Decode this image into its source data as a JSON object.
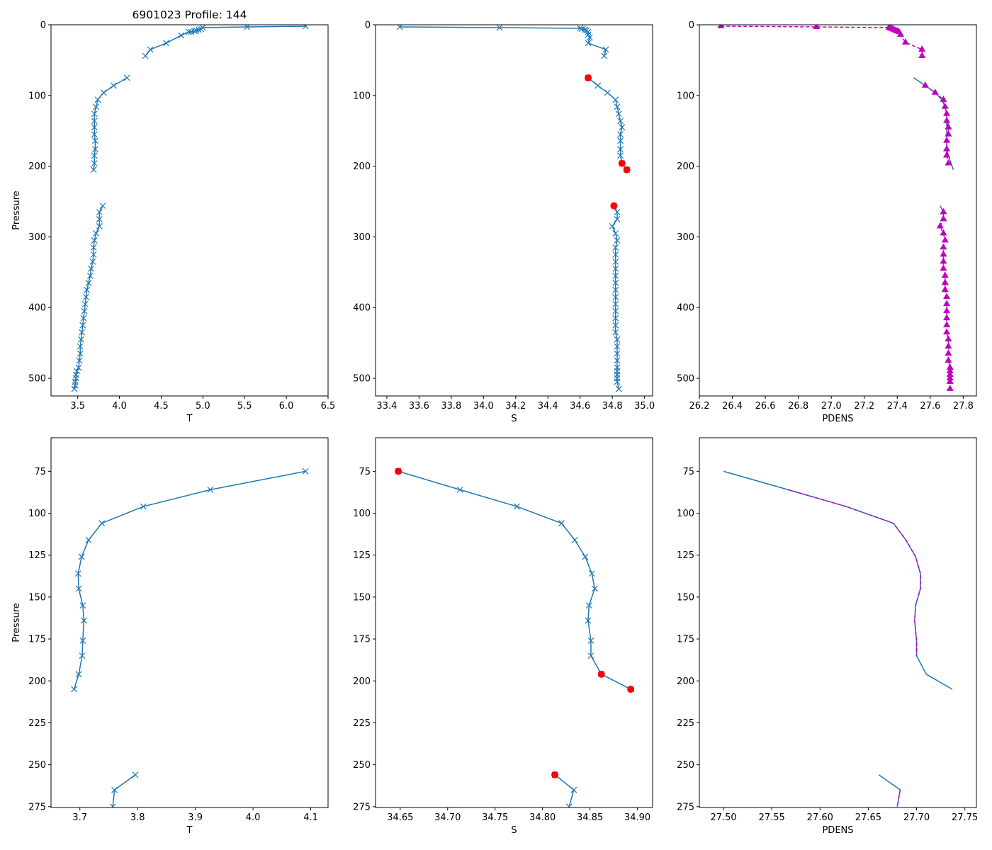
{
  "figure": {
    "colors": {
      "line": "#1f77b4",
      "flag": "#ff0000",
      "pdens": "#bf00bf",
      "axis": "#000000",
      "background": "#ffffff"
    }
  },
  "chart_data": [
    {
      "id": "top-t",
      "type": "line",
      "title": "6901023 Profile: 144",
      "xlabel": "T",
      "ylabel": "Pressure",
      "xlim": [
        3.18,
        6.5
      ],
      "ylim": [
        525,
        0
      ],
      "xticks": [
        3.5,
        4.0,
        4.5,
        5.0,
        5.5,
        6.0,
        6.5
      ],
      "xtick_labels": [
        "3.5",
        "4.0",
        "4.5",
        "5.0",
        "5.5",
        "6.0",
        "6.5"
      ],
      "yticks": [
        0,
        100,
        200,
        300,
        400,
        500
      ],
      "series": [
        {
          "name": "T",
          "marker": "x",
          "x": [
            6.23,
            5.53,
            5.0,
            4.98,
            4.95,
            4.92,
            4.9,
            4.86,
            4.83,
            4.74,
            4.56,
            4.37,
            4.31
          ],
          "y": [
            2,
            3,
            4,
            6,
            7,
            8,
            9,
            10,
            10,
            15,
            26,
            35,
            44
          ]
        },
        {
          "name": "T",
          "marker": "x",
          "x": [
            4.09,
            3.93,
            3.81,
            3.74,
            3.72,
            3.7,
            3.7,
            3.7,
            3.7,
            3.71,
            3.71,
            3.7,
            3.7,
            3.69
          ],
          "y": [
            75,
            86,
            96,
            106,
            116,
            126,
            136,
            145,
            155,
            164,
            176,
            185,
            196,
            205
          ]
        },
        {
          "name": "T",
          "marker": "x",
          "x": [
            3.8,
            3.76,
            3.76,
            3.76,
            3.72,
            3.7,
            3.69,
            3.69,
            3.68,
            3.66,
            3.65,
            3.63,
            3.61,
            3.6,
            3.59,
            3.58,
            3.57,
            3.56,
            3.55,
            3.54,
            3.53,
            3.53,
            3.52,
            3.51,
            3.49,
            3.48,
            3.48,
            3.47,
            3.47,
            3.46
          ],
          "y": [
            256,
            265,
            275,
            285,
            295,
            305,
            315,
            325,
            335,
            345,
            355,
            365,
            375,
            385,
            395,
            405,
            415,
            425,
            435,
            445,
            455,
            465,
            475,
            485,
            490,
            495,
            500,
            505,
            510,
            515
          ]
        }
      ]
    },
    {
      "id": "top-s",
      "type": "line",
      "title": "",
      "xlabel": "S",
      "ylabel": "",
      "xlim": [
        33.33,
        35.05
      ],
      "ylim": [
        525,
        0
      ],
      "xticks": [
        33.4,
        33.6,
        33.8,
        34.0,
        34.2,
        34.4,
        34.6,
        34.8,
        35.0
      ],
      "xtick_labels": [
        "33.4",
        "33.6",
        "33.8",
        "34.0",
        "34.2",
        "34.4",
        "34.6",
        "34.8",
        "35.0"
      ],
      "yticks": [
        0,
        100,
        200,
        300,
        400,
        500
      ],
      "series": [
        {
          "name": "S",
          "marker": "x",
          "x": [
            33.48,
            34.1,
            34.6,
            34.61,
            34.63,
            34.64,
            34.65,
            34.65,
            34.66,
            34.65,
            34.76,
            34.75
          ],
          "y": [
            3,
            4,
            5,
            6,
            7,
            8,
            10,
            14,
            18,
            26,
            35,
            44
          ]
        },
        {
          "name": "S",
          "marker": "x",
          "x": [
            34.65,
            34.71,
            34.77,
            34.82,
            34.83,
            34.84,
            34.85,
            34.86,
            34.85,
            34.85,
            34.85,
            34.85,
            34.86,
            34.89
          ],
          "y": [
            75,
            86,
            96,
            106,
            116,
            126,
            136,
            145,
            155,
            164,
            176,
            185,
            196,
            205
          ]
        },
        {
          "name": "S",
          "marker": "x",
          "x": [
            34.81,
            34.83,
            34.83,
            34.8,
            34.82,
            34.83,
            34.82,
            34.82,
            34.82,
            34.82,
            34.82,
            34.82,
            34.82,
            34.82,
            34.82,
            34.82,
            34.82,
            34.82,
            34.82,
            34.83,
            34.83,
            34.83,
            34.83,
            34.83,
            34.83,
            34.83,
            34.83,
            34.83,
            34.84
          ],
          "y": [
            256,
            265,
            275,
            285,
            295,
            305,
            315,
            325,
            335,
            345,
            355,
            365,
            375,
            385,
            395,
            405,
            415,
            425,
            435,
            445,
            455,
            465,
            475,
            485,
            490,
            495,
            500,
            505,
            515
          ]
        }
      ],
      "flagged": {
        "name": "flagged S",
        "marker": "o",
        "x": [
          34.65,
          34.86,
          34.89,
          34.81
        ],
        "y": [
          75,
          196,
          205,
          256
        ]
      }
    },
    {
      "id": "top-pdens",
      "type": "line",
      "title": "",
      "xlabel": "PDENS",
      "ylabel": "",
      "xlim": [
        26.2,
        27.88
      ],
      "ylim": [
        525,
        0
      ],
      "xticks": [
        26.2,
        26.4,
        26.6,
        26.8,
        27.0,
        27.2,
        27.4,
        27.6,
        27.8
      ],
      "xtick_labels": [
        "26.2",
        "26.4",
        "26.6",
        "26.8",
        "27.0",
        "27.2",
        "27.4",
        "27.6",
        "27.8"
      ],
      "yticks": [
        0,
        100,
        200,
        300,
        400,
        500
      ],
      "series": [
        {
          "name": "PDENS",
          "marker": "none",
          "x": [
            27.5,
            27.57,
            27.63,
            27.67,
            27.69,
            27.7,
            27.7,
            27.7,
            27.7,
            27.7,
            27.7,
            27.71,
            27.74
          ],
          "y": [
            75,
            86,
            96,
            106,
            116,
            126,
            136,
            145,
            155,
            164,
            176,
            185,
            205
          ]
        },
        {
          "name": "PDENS",
          "marker": "none",
          "x": [
            27.66,
            27.68,
            27.68
          ],
          "y": [
            256,
            265,
            275
          ]
        }
      ],
      "overlay": [
        {
          "name": "PDENS check",
          "marker": "^",
          "x": [
            26.33,
            26.91,
            27.35,
            27.36,
            27.37,
            27.38,
            27.39,
            27.4,
            27.41,
            27.42,
            27.45,
            27.55,
            27.55
          ],
          "y": [
            2,
            3,
            4,
            5,
            6,
            7,
            8,
            9,
            10,
            14,
            25,
            35,
            44
          ]
        },
        {
          "name": "PDENS check",
          "marker": "^",
          "x": [
            27.57,
            27.63,
            27.68,
            27.69,
            27.7,
            27.7,
            27.71,
            27.71,
            27.7,
            27.7,
            27.7,
            27.71
          ],
          "y": [
            86,
            96,
            106,
            116,
            126,
            136,
            145,
            155,
            164,
            176,
            185,
            196
          ]
        },
        {
          "name": "PDENS check",
          "marker": "^",
          "x": [
            27.68,
            27.68,
            27.66,
            27.68,
            27.69,
            27.68,
            27.68,
            27.68,
            27.68,
            27.69,
            27.69,
            27.69,
            27.7,
            27.7,
            27.7,
            27.7,
            27.7,
            27.7,
            27.71,
            27.71,
            27.71,
            27.71,
            27.72,
            27.72,
            27.72,
            27.72,
            27.72,
            27.72
          ],
          "y": [
            265,
            275,
            285,
            295,
            305,
            315,
            325,
            335,
            345,
            355,
            365,
            375,
            385,
            395,
            405,
            415,
            425,
            435,
            445,
            455,
            465,
            475,
            485,
            490,
            495,
            500,
            505,
            515
          ]
        }
      ]
    },
    {
      "id": "bottom-t",
      "type": "line",
      "title": "",
      "xlabel": "T",
      "ylabel": "Pressure",
      "xlim": [
        3.65,
        4.13
      ],
      "ylim": [
        275.5,
        55
      ],
      "xticks": [
        3.7,
        3.8,
        3.9,
        4.0,
        4.1
      ],
      "xtick_labels": [
        "3.7",
        "3.8",
        "3.9",
        "4.0",
        "4.1"
      ],
      "yticks": [
        75,
        100,
        125,
        150,
        175,
        200,
        225,
        250,
        275
      ],
      "series": [
        {
          "name": "T",
          "marker": "x",
          "x": [
            4.091,
            3.926,
            3.81,
            3.738,
            3.715,
            3.703,
            3.697,
            3.698,
            3.705,
            3.707,
            3.705,
            3.704,
            3.698,
            3.69
          ],
          "y": [
            75,
            86,
            96,
            106,
            116,
            126,
            136,
            145,
            155,
            164,
            176,
            185,
            196,
            205
          ]
        },
        {
          "name": "T",
          "marker": "x",
          "x": [
            3.796,
            3.76,
            3.757
          ],
          "y": [
            256,
            265,
            275
          ]
        }
      ]
    },
    {
      "id": "bottom-s",
      "type": "line",
      "title": "",
      "xlabel": "S",
      "ylabel": "",
      "xlim": [
        34.624,
        34.916
      ],
      "ylim": [
        275.5,
        55
      ],
      "xticks": [
        34.65,
        34.7,
        34.75,
        34.8,
        34.85,
        34.9
      ],
      "xtick_labels": [
        "34.65",
        "34.70",
        "34.75",
        "34.80",
        "34.85",
        "34.90"
      ],
      "yticks": [
        75,
        100,
        125,
        150,
        175,
        200,
        225,
        250,
        275
      ],
      "series": [
        {
          "name": "S",
          "marker": "x",
          "x": [
            34.648,
            34.713,
            34.773,
            34.82,
            34.834,
            34.845,
            34.852,
            34.855,
            34.849,
            34.848,
            34.851,
            34.851,
            34.862,
            34.893
          ],
          "y": [
            75,
            86,
            96,
            106,
            116,
            126,
            136,
            145,
            155,
            164,
            176,
            185,
            196,
            205
          ]
        },
        {
          "name": "S",
          "marker": "x",
          "x": [
            34.813,
            34.833,
            34.828
          ],
          "y": [
            256,
            265,
            275
          ]
        }
      ],
      "flagged": {
        "name": "flagged S",
        "marker": "o",
        "x": [
          34.648,
          34.862,
          34.893,
          34.813
        ],
        "y": [
          75,
          196,
          205,
          256
        ]
      }
    },
    {
      "id": "bottom-pdens",
      "type": "line",
      "title": "",
      "xlabel": "PDENS",
      "ylabel": "",
      "xlim": [
        27.475,
        27.762
      ],
      "ylim": [
        275.5,
        55
      ],
      "xticks": [
        27.5,
        27.55,
        27.6,
        27.65,
        27.7,
        27.75
      ],
      "xtick_labels": [
        "27.50",
        "27.55",
        "27.60",
        "27.65",
        "27.70",
        "27.75"
      ],
      "yticks": [
        75,
        100,
        125,
        150,
        175,
        200,
        225,
        250,
        275
      ],
      "series": [
        {
          "name": "PDENS",
          "marker": "none",
          "x": [
            27.5,
            27.567,
            27.627,
            27.676,
            27.689,
            27.699,
            27.704,
            27.704,
            27.699,
            27.698,
            27.7,
            27.7,
            27.71,
            27.737
          ],
          "y": [
            75,
            86,
            96,
            106,
            116,
            126,
            136,
            145,
            155,
            164,
            176,
            185,
            196,
            205
          ]
        },
        {
          "name": "PDENS",
          "marker": "none",
          "x": [
            27.661,
            27.683,
            27.68
          ],
          "y": [
            256,
            265,
            275
          ]
        }
      ],
      "overlay": [
        {
          "name": "PDENS check",
          "marker": "none",
          "x": [
            27.567,
            27.627,
            27.676,
            27.689,
            27.699,
            27.704,
            27.704,
            27.699,
            27.698,
            27.7,
            27.7
          ],
          "y": [
            86,
            96,
            106,
            116,
            126,
            136,
            145,
            155,
            164,
            176,
            185
          ]
        },
        {
          "name": "PDENS check",
          "marker": "none",
          "x": [
            27.683,
            27.68
          ],
          "y": [
            265,
            275
          ]
        }
      ]
    }
  ]
}
